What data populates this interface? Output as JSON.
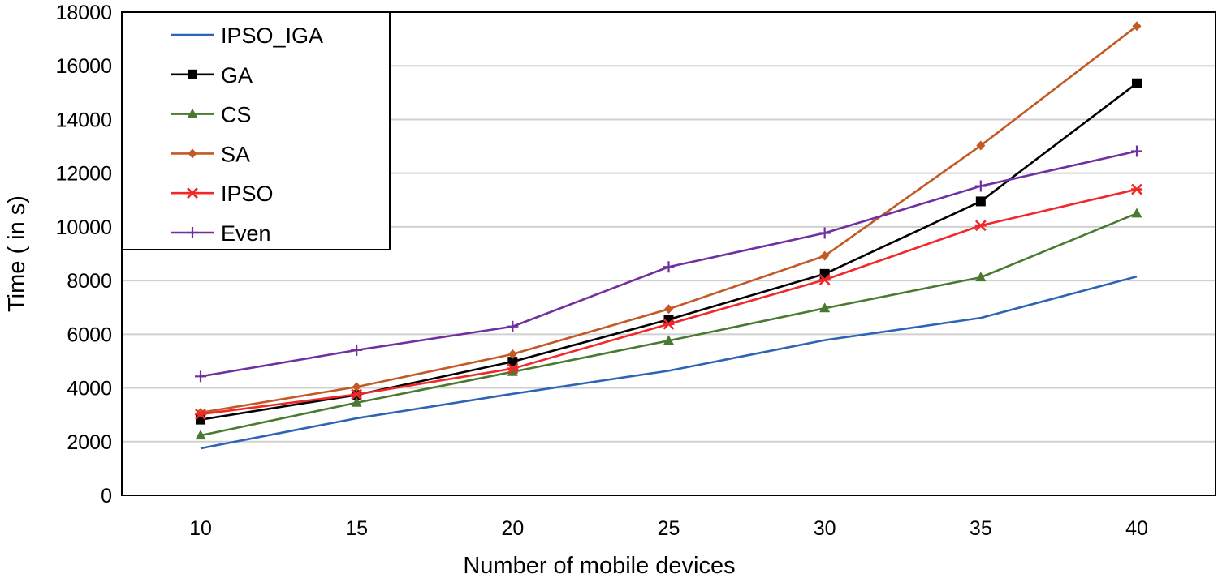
{
  "chart_data": {
    "type": "line",
    "title": "",
    "xlabel": "Number of mobile devices",
    "ylabel": "Time ( in s)",
    "x": [
      10,
      15,
      20,
      25,
      30,
      35,
      40
    ],
    "ylim": [
      0,
      18000
    ],
    "yticks": [
      0,
      2000,
      4000,
      6000,
      8000,
      10000,
      12000,
      14000,
      16000,
      18000
    ],
    "grid": "horizontal",
    "legend_position": "top-left",
    "series": [
      {
        "name": "IPSO_IGA",
        "color": "#2e64b4",
        "marker": "none",
        "values": [
          1750,
          2870,
          3780,
          4640,
          5780,
          6610,
          8150
        ]
      },
      {
        "name": "GA",
        "color": "#000000",
        "marker": "square",
        "values": [
          2820,
          3740,
          4980,
          6550,
          8250,
          10950,
          15350
        ]
      },
      {
        "name": "CS",
        "color": "#4a7a32",
        "marker": "triangle",
        "values": [
          2230,
          3450,
          4600,
          5760,
          6970,
          8120,
          10500
        ]
      },
      {
        "name": "SA",
        "color": "#c25a26",
        "marker": "diamond",
        "values": [
          3080,
          4040,
          5260,
          6940,
          8920,
          13030,
          17480
        ]
      },
      {
        "name": "IPSO",
        "color": "#f02828",
        "marker": "asterisk",
        "values": [
          3020,
          3760,
          4720,
          6380,
          8030,
          10050,
          11400
        ]
      },
      {
        "name": "Even",
        "color": "#7030a0",
        "marker": "plus",
        "values": [
          4430,
          5410,
          6290,
          8510,
          9770,
          11520,
          12820
        ]
      }
    ]
  }
}
